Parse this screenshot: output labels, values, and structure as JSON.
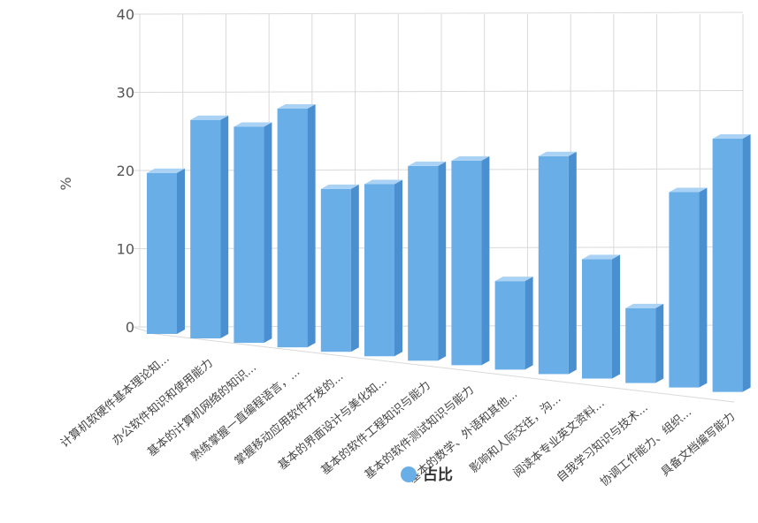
{
  "chart_data": {
    "type": "bar",
    "ylabel": "%",
    "ylim": [
      0,
      40
    ],
    "yticks": [
      0,
      10,
      20,
      30,
      40
    ],
    "categories": [
      "计算机软硬件基本理论知...",
      "办公软件知识和使用能力",
      "基本的计算机网络的知识...",
      "熟练掌握一直编程语言，...",
      "掌握移动应用软件开发的...",
      "基本的界面设计与美化知...",
      "基本的软件工程知识与能力",
      "基本的软件测试知识与能力",
      "基本的数学、外语和其他...",
      "影响和人际交往，沟...",
      "阅读本专业英文资料...",
      "自我学习知识与技术...",
      "协调工作能力、组织...",
      "具备文档编写能力"
    ],
    "series": [
      {
        "name": "占比",
        "values": [
          27,
          36,
          35,
          38,
          25.5,
          26.5,
          29.5,
          30.5,
          13,
          31.5,
          17,
          10.5,
          27,
          34.5
        ]
      }
    ],
    "grid": true,
    "legend": "bottom",
    "colors": {
      "bar": "#6aaee8",
      "bar_side": "#4a8fd0",
      "bar_top": "#a9d2f5"
    }
  }
}
